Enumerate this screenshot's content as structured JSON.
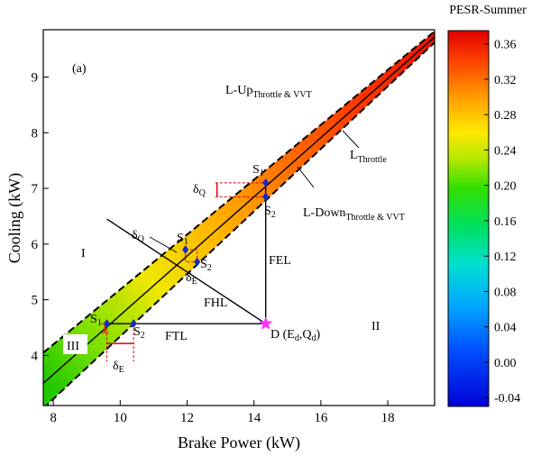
{
  "chart_data": {
    "type": "line",
    "panel_label": "(a)",
    "xlabel": "Brake Power (kW)",
    "ylabel": "Cooling (kW)",
    "xlim": [
      7.7,
      19.4
    ],
    "ylim": [
      3.1,
      9.85
    ],
    "x_ticks": [
      8,
      10,
      12,
      14,
      16,
      18
    ],
    "y_ticks": [
      4,
      5,
      6,
      7,
      8,
      9
    ],
    "colorbar": {
      "title": "PESR-Summer",
      "min": -0.05,
      "max": 0.375,
      "ticks": [
        -0.04,
        0.0,
        0.04,
        0.08,
        0.12,
        0.16,
        0.2,
        0.24,
        0.28,
        0.32,
        0.36
      ],
      "tick_labels": [
        "-0.04",
        "0.00",
        "0.04",
        "0.08",
        "0.12",
        "0.16",
        "0.20",
        "0.24",
        "0.28",
        "0.32",
        "0.36"
      ]
    },
    "series": [
      {
        "name": "L-Throttle",
        "x": [
          7.7,
          19.4
        ],
        "y": [
          3.5,
          9.72
        ],
        "style": "solid"
      },
      {
        "name": "L-Up-Throttle-VVT",
        "x": [
          7.7,
          19.4
        ],
        "y": [
          4.05,
          9.82
        ],
        "style": "dashed"
      },
      {
        "name": "L-Down-Throttle-VVT",
        "x": [
          7.7,
          19.4
        ],
        "y": [
          3.05,
          9.62
        ],
        "style": "dashed"
      },
      {
        "name": "FTL",
        "x": [
          9.6,
          14.35
        ],
        "y": [
          4.57,
          4.57
        ],
        "style": "solid"
      },
      {
        "name": "FEL",
        "x": [
          14.35,
          14.35
        ],
        "y": [
          4.57,
          7.1
        ],
        "style": "solid"
      },
      {
        "name": "FHL",
        "x": [
          9.6,
          14.35
        ],
        "y": [
          6.45,
          4.57
        ],
        "style": "solid"
      }
    ],
    "points": [
      {
        "label": "D",
        "x": 14.35,
        "y": 4.57,
        "marker": "star"
      },
      {
        "label": "S1",
        "x": 9.6,
        "y": 4.57,
        "marker": "diamond"
      },
      {
        "label": "S2",
        "x": 10.4,
        "y": 4.57,
        "marker": "diamond"
      },
      {
        "label": "S1",
        "x": 11.95,
        "y": 5.9,
        "marker": "diamond"
      },
      {
        "label": "S2",
        "x": 12.3,
        "y": 5.68,
        "marker": "diamond"
      },
      {
        "label": "S1",
        "x": 14.35,
        "y": 7.1,
        "marker": "diamond"
      },
      {
        "label": "S2",
        "x": 14.35,
        "y": 6.85,
        "marker": "diamond"
      }
    ],
    "annotations": {
      "l_up": "L-Up",
      "l_up_sub": "Throttle & VVT",
      "l_throttle": "L",
      "l_throttle_sub": "Throttle",
      "l_down": "L-Down",
      "l_down_sub": "Throttle & VVT",
      "region_1": "I",
      "region_2": "II",
      "region_3": "III",
      "fel": "FEL",
      "fhl": "FHL",
      "ftl": "FTL",
      "d_label": "D (E",
      "d_sub1": "d",
      "d_mid": ",Q",
      "d_sub2": "d",
      "d_end": ")",
      "s": "S",
      "s1_sub": "1",
      "s2_sub": "2",
      "delta": "δ",
      "delta_q_sub": "Q",
      "delta_e_sub": "E"
    }
  }
}
